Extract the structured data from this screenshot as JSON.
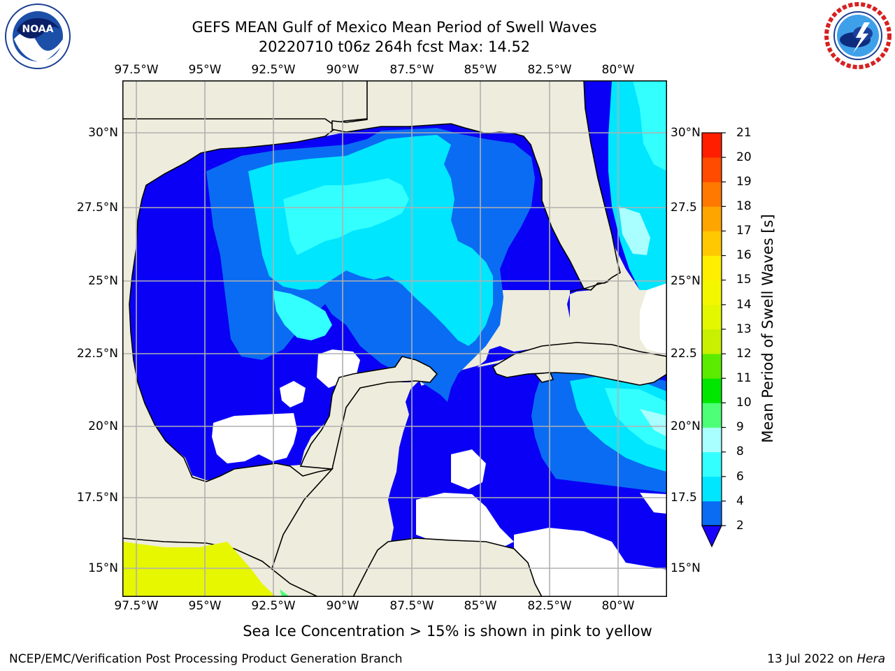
{
  "header": {
    "title_line1": "GEFS MEAN Gulf of Mexico Mean Period of Swell Waves",
    "title_line2": "20220710 t06z 264h fcst   Max: 14.52"
  },
  "logos": {
    "left": {
      "name": "noaa-logo",
      "text": "NOAA",
      "ring_text": "NATIONAL OCEANIC AND ATMOSPHERIC ADMINISTRATION · U.S. DEPARTMENT OF COMMERCE"
    },
    "right": {
      "name": "nws-logo",
      "ring_text": "NATIONAL WEATHER SERVICE"
    }
  },
  "map": {
    "longitude_labels": [
      "97.5°W",
      "95°W",
      "92.5°W",
      "90°W",
      "87.5°W",
      "85°W",
      "82.5°W",
      "80°W"
    ],
    "latitude_labels_left": [
      "30°N",
      "27.5°N",
      "25°N",
      "22.5°N",
      "20°N",
      "17.5°N",
      "15°N"
    ],
    "latitude_labels_right": [
      "30°N",
      "27.5",
      "25°N",
      "22.5",
      "20°N",
      "17.5",
      "15°N"
    ],
    "extent": {
      "lon_min": -98,
      "lon_max": -78.2,
      "lat_min": 14,
      "lat_max": 31.8
    },
    "colors": {
      "land": "#eeecdc",
      "grid": "#b0b0b0",
      "no_data": "#ffffff"
    }
  },
  "colorbar": {
    "title": "Mean Period of Swell Waves [s]",
    "ticks": [
      "21",
      "20",
      "19",
      "18",
      "17",
      "16",
      "15",
      "14",
      "13",
      "12",
      "11",
      "10",
      "9",
      "8",
      "6",
      "4",
      "2"
    ],
    "bins": [
      {
        "range": "2-4",
        "color": "#0a6cf2"
      },
      {
        "range": "4-6",
        "color": "#00e6ff"
      },
      {
        "range": "6-8",
        "color": "#33ffff"
      },
      {
        "range": "8-9",
        "color": "#a9ffff"
      },
      {
        "range": "9-10",
        "color": "#4dff77"
      },
      {
        "range": "10-11",
        "color": "#00e600"
      },
      {
        "range": "11-12",
        "color": "#5aeb00"
      },
      {
        "range": "12-13",
        "color": "#c8f000"
      },
      {
        "range": "13-14",
        "color": "#e3f700"
      },
      {
        "range": "14-15",
        "color": "#f3f700"
      },
      {
        "range": "15-16",
        "color": "#ffee00"
      },
      {
        "range": "16-17",
        "color": "#ffc800"
      },
      {
        "range": "17-18",
        "color": "#ffa500"
      },
      {
        "range": "18-19",
        "color": "#ff7800"
      },
      {
        "range": "19-20",
        "color": "#ff4b00"
      },
      {
        "range": "20-21",
        "color": "#ff1e00"
      }
    ],
    "under_color": "#1a00ff"
  },
  "field_colors": {
    "below_2": "#0a00f5",
    "2_to_4": "#0a6cf2",
    "4_to_6": "#00e6ff",
    "6_to_8": "#33ffff",
    "8_to_9": "#a9ffff",
    "pacific_swell": "#e6f700"
  },
  "note": "Sea Ice Concentration > 15% is shown in pink to yellow",
  "footer": {
    "left": "NCEP/EMC/Verification Post Processing Product Generation Branch",
    "right_date": "13 Jul 2022 on",
    "right_machine": "Hera"
  }
}
